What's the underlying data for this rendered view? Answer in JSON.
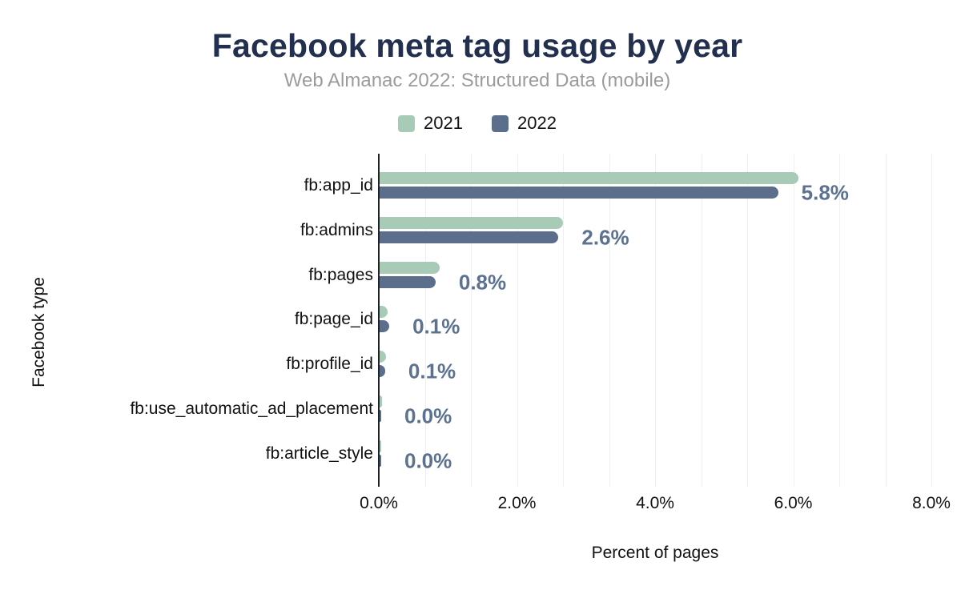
{
  "chart_data": {
    "type": "bar",
    "orientation": "horizontal",
    "title": "Facebook meta tag usage by year",
    "subtitle": "Web Almanac 2022: Structured Data (mobile)",
    "xlabel": "Percent of pages",
    "ylabel": "Facebook type",
    "categories": [
      "fb:app_id",
      "fb:admins",
      "fb:pages",
      "fb:page_id",
      "fb:profile_id",
      "fb:use_automatic_ad_placement",
      "fb:article_style"
    ],
    "series": [
      {
        "name": "2021",
        "color": "#a8cbb8",
        "values": [
          6.06,
          2.65,
          0.87,
          0.12,
          0.09,
          0.03,
          0.01
        ]
      },
      {
        "name": "2022",
        "color": "#5b6e8c",
        "values": [
          5.77,
          2.59,
          0.81,
          0.14,
          0.08,
          0.02,
          0.01
        ]
      }
    ],
    "value_labels": [
      "5.8%",
      "2.6%",
      "0.8%",
      "0.1%",
      "0.1%",
      "0.0%",
      "0.0%"
    ],
    "xlim": [
      0,
      8
    ],
    "xticks": [
      {
        "value": 0,
        "label": "0.0%"
      },
      {
        "value": 2,
        "label": "2.0%"
      },
      {
        "value": 4,
        "label": "4.0%"
      },
      {
        "value": 6,
        "label": "6.0%"
      },
      {
        "value": 8,
        "label": "8.0%"
      }
    ],
    "grid": {
      "show": true,
      "minor_divisions_per_major": 3,
      "gridline_color": "#efefef"
    },
    "legend_position": "top"
  },
  "colors": {
    "title": "#232f4e",
    "subtitle": "#9b9b9b",
    "value_label": "#5c7290",
    "axis_line": "#202124",
    "series_2021": "#a8cbb8",
    "series_2022": "#5b6e8c"
  }
}
